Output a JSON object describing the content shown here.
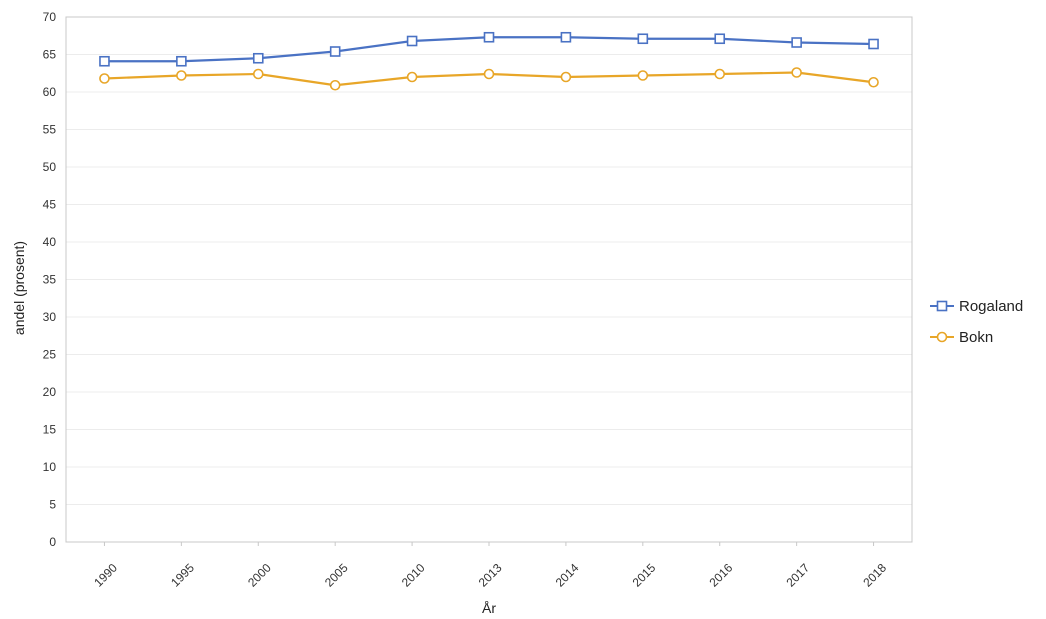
{
  "chart_data": {
    "type": "line",
    "categories": [
      "1990",
      "1995",
      "2000",
      "2005",
      "2010",
      "2013",
      "2014",
      "2015",
      "2016",
      "2017",
      "2018"
    ],
    "series": [
      {
        "name": "Rogaland",
        "color": "#4a72c4",
        "marker": "square",
        "values": [
          64.1,
          64.1,
          64.5,
          65.4,
          66.8,
          67.3,
          67.3,
          67.1,
          67.1,
          66.6,
          66.4
        ]
      },
      {
        "name": "Bokn",
        "color": "#e8a628",
        "marker": "circle",
        "values": [
          61.8,
          62.2,
          62.4,
          60.9,
          62.0,
          62.4,
          62.0,
          62.2,
          62.4,
          62.6,
          61.3
        ]
      }
    ],
    "xlabel": "År",
    "ylabel": "andel (prosent)",
    "ylim": [
      0,
      70
    ],
    "yticks": [
      0,
      5,
      10,
      15,
      20,
      25,
      30,
      35,
      40,
      45,
      50,
      55,
      60,
      65,
      70
    ],
    "grid": true,
    "legend": "right"
  }
}
